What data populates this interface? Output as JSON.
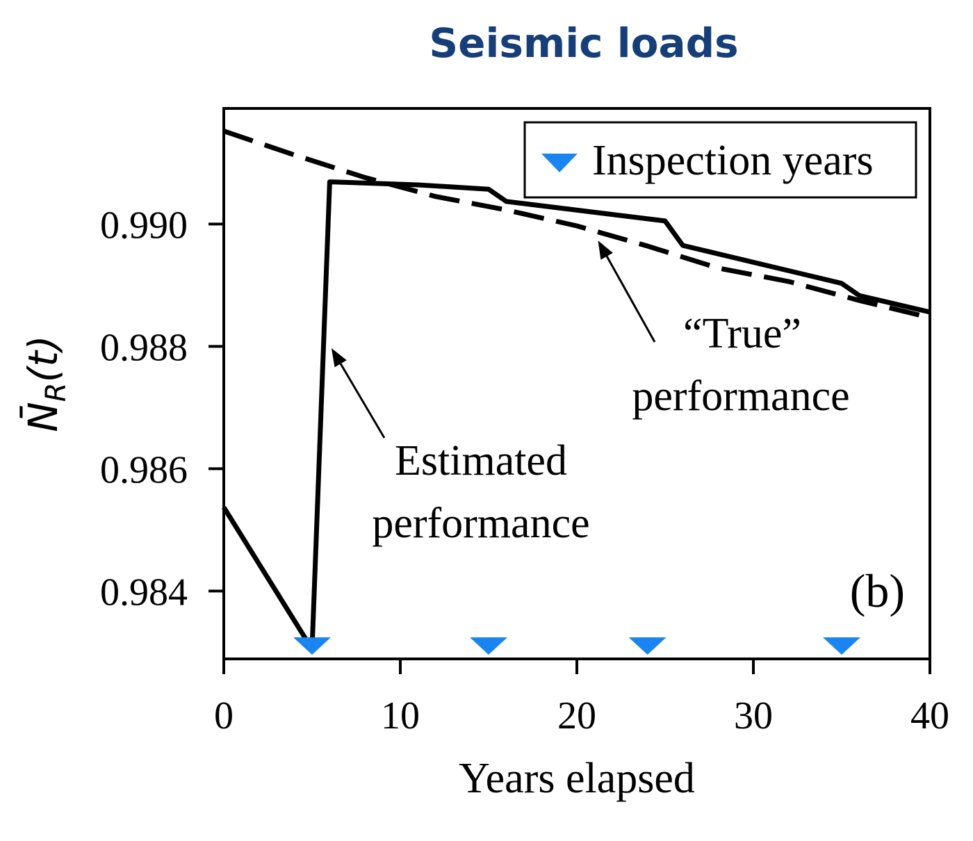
{
  "title": "Seismic loads",
  "chart_data": {
    "type": "line",
    "xlabel": "Years elapsed",
    "ylabel": "N̄R(t)",
    "ylabel_main": "N̄",
    "ylabel_sub": "R",
    "ylabel_arg": "(t)",
    "xlim": [
      0,
      40
    ],
    "ylim": [
      0.98289,
      0.99189
    ],
    "xticks": [
      0,
      10,
      20,
      30,
      40
    ],
    "xtick_labels": [
      "0",
      "10",
      "20",
      "30",
      "40"
    ],
    "yticks": [
      0.984,
      0.986,
      0.988,
      0.99
    ],
    "ytick_labels": [
      "0.984",
      "0.986",
      "0.988",
      "0.990"
    ],
    "panel_label": "(b)",
    "legend": {
      "position": "top-right",
      "entries": [
        "Inspection years"
      ]
    },
    "series": [
      {
        "name": "Estimated performance",
        "style": "solid",
        "x": [
          0,
          5,
          6,
          11,
          15,
          16,
          25,
          26,
          35,
          36,
          40
        ],
        "y": [
          0.98537,
          0.98305,
          0.99069,
          0.99064,
          0.99057,
          0.99037,
          0.99005,
          0.98965,
          0.98903,
          0.98883,
          0.98856
        ]
      },
      {
        "name": "“True” performance",
        "style": "dashed",
        "x": [
          0,
          4,
          8,
          12,
          16,
          20,
          24,
          28,
          32,
          36,
          40
        ],
        "y": [
          0.99152,
          0.99113,
          0.99076,
          0.99045,
          0.99023,
          0.98997,
          0.98964,
          0.98928,
          0.98906,
          0.98875,
          0.98847
        ]
      }
    ],
    "inspection_years": {
      "name": "Inspection years",
      "x": [
        5,
        15,
        24,
        35
      ],
      "color": "#1a84f0"
    },
    "annotations": [
      {
        "id": "true",
        "lines": [
          "“True”",
          "performance"
        ],
        "arrow_to": {
          "x": 21.2,
          "y": 0.98973
        }
      },
      {
        "id": "estimated",
        "lines": [
          "Estimated",
          "performance"
        ],
        "arrow_to": {
          "x": 6.1,
          "y": 0.98797
        }
      }
    ],
    "colors": {
      "lines": "#000000",
      "marker": "#1a84f0",
      "title": "#163e78"
    }
  }
}
